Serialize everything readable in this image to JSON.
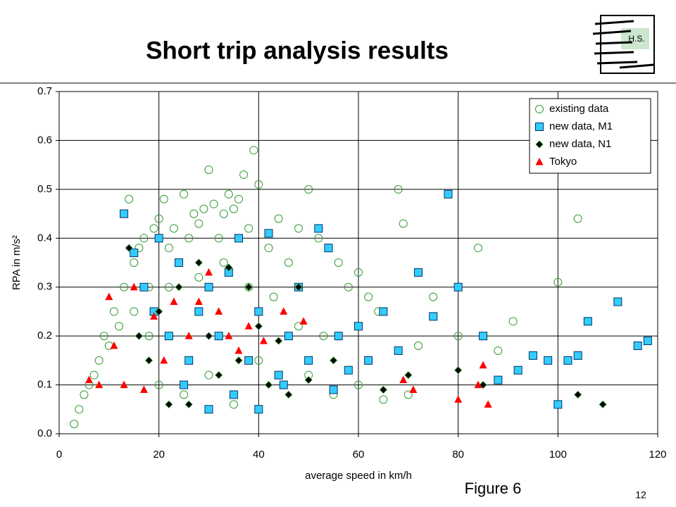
{
  "chart_data": {
    "type": "scatter",
    "title": "Short trip analysis results",
    "xlabel": "average speed in km/h",
    "ylabel": "RPA in m/s²",
    "footnote": "Figure 6",
    "page_number": "12",
    "logo_text": "H.S.",
    "xlim": [
      0,
      120
    ],
    "xticks": [
      0,
      20,
      40,
      60,
      80,
      100,
      120
    ],
    "ylim": [
      0,
      0.7
    ],
    "yticks": [
      {
        "value": 0,
        "label": "0.0"
      },
      0.1,
      0.2,
      0.3,
      0.4,
      0.5,
      0.6,
      0.7
    ],
    "grid": true,
    "legend": "upper right",
    "series": [
      {
        "name": "existing data",
        "color": "#339933",
        "marker": "circle",
        "x": [
          3,
          4,
          5,
          6,
          7,
          8,
          9,
          10,
          11,
          12,
          13,
          14,
          15,
          16,
          17,
          18,
          19,
          20,
          21,
          22,
          23,
          24,
          25,
          26,
          27,
          28,
          29,
          30,
          31,
          32,
          33,
          34,
          35,
          36,
          37,
          38,
          39,
          40,
          42,
          44,
          46,
          48,
          50,
          52,
          54,
          56,
          58,
          60,
          62,
          64,
          68,
          69,
          72,
          75,
          80,
          84,
          88,
          91,
          100,
          104,
          20,
          25,
          30,
          35,
          40,
          45,
          50,
          55,
          60,
          65,
          15,
          18,
          22,
          28,
          33,
          38,
          43,
          48,
          53,
          70
        ],
        "values": [
          0.02,
          0.05,
          0.08,
          0.1,
          0.12,
          0.15,
          0.2,
          0.18,
          0.25,
          0.22,
          0.3,
          0.48,
          0.35,
          0.38,
          0.4,
          0.3,
          0.42,
          0.44,
          0.48,
          0.38,
          0.42,
          0.35,
          0.49,
          0.4,
          0.45,
          0.43,
          0.46,
          0.54,
          0.47,
          0.4,
          0.45,
          0.49,
          0.46,
          0.48,
          0.53,
          0.42,
          0.58,
          0.51,
          0.38,
          0.44,
          0.35,
          0.42,
          0.5,
          0.4,
          0.38,
          0.35,
          0.3,
          0.33,
          0.28,
          0.25,
          0.5,
          0.43,
          0.18,
          0.28,
          0.2,
          0.38,
          0.17,
          0.23,
          0.31,
          0.44,
          0.1,
          0.08,
          0.12,
          0.06,
          0.15,
          0.1,
          0.12,
          0.08,
          0.1,
          0.07,
          0.25,
          0.2,
          0.3,
          0.32,
          0.35,
          0.3,
          0.28,
          0.22,
          0.2,
          0.08
        ]
      },
      {
        "name": "new data, M1",
        "color": "#33ccff",
        "marker": "square",
        "x": [
          13,
          15,
          17,
          19,
          20,
          22,
          24,
          26,
          28,
          30,
          32,
          34,
          36,
          38,
          40,
          42,
          44,
          46,
          48,
          50,
          52,
          54,
          56,
          58,
          60,
          62,
          65,
          68,
          72,
          75,
          78,
          80,
          85,
          88,
          92,
          95,
          98,
          100,
          104,
          112,
          116,
          118,
          106,
          102,
          25,
          35,
          45,
          55,
          30,
          40
        ],
        "values": [
          0.45,
          0.37,
          0.3,
          0.25,
          0.4,
          0.2,
          0.35,
          0.15,
          0.25,
          0.3,
          0.2,
          0.33,
          0.4,
          0.15,
          0.25,
          0.41,
          0.12,
          0.2,
          0.3,
          0.15,
          0.42,
          0.38,
          0.2,
          0.13,
          0.22,
          0.15,
          0.25,
          0.17,
          0.33,
          0.24,
          0.49,
          0.3,
          0.2,
          0.11,
          0.13,
          0.16,
          0.15,
          0.06,
          0.16,
          0.27,
          0.18,
          0.19,
          0.23,
          0.15,
          0.1,
          0.08,
          0.1,
          0.09,
          0.05,
          0.05
        ]
      },
      {
        "name": "new data, N1",
        "color": "#000000",
        "marker": "diamond",
        "x": [
          14,
          16,
          18,
          20,
          22,
          24,
          26,
          28,
          30,
          32,
          34,
          36,
          38,
          40,
          42,
          44,
          46,
          48,
          50,
          55,
          65,
          70,
          80,
          85,
          104,
          109
        ],
        "values": [
          0.38,
          0.2,
          0.15,
          0.25,
          0.06,
          0.3,
          0.06,
          0.35,
          0.2,
          0.12,
          0.34,
          0.15,
          0.3,
          0.22,
          0.1,
          0.19,
          0.08,
          0.3,
          0.11,
          0.15,
          0.09,
          0.12,
          0.13,
          0.1,
          0.08,
          0.06
        ]
      },
      {
        "name": "Tokyo",
        "color": "#ff0000",
        "marker": "triangle",
        "x": [
          6,
          8,
          10,
          11,
          13,
          15,
          17,
          19,
          21,
          23,
          26,
          28,
          30,
          32,
          34,
          36,
          38,
          41,
          45,
          49,
          69,
          71,
          80,
          84,
          85,
          86
        ],
        "values": [
          0.11,
          0.1,
          0.28,
          0.18,
          0.1,
          0.3,
          0.09,
          0.24,
          0.15,
          0.27,
          0.2,
          0.27,
          0.33,
          0.25,
          0.2,
          0.17,
          0.22,
          0.19,
          0.25,
          0.23,
          0.11,
          0.09,
          0.07,
          0.1,
          0.14,
          0.06
        ]
      }
    ]
  }
}
